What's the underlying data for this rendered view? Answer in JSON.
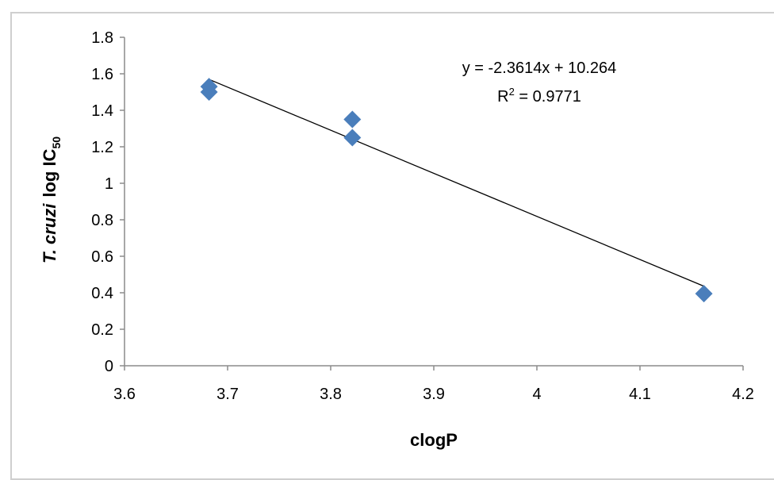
{
  "chart_data": {
    "type": "scatter",
    "x_label": "clogP",
    "y_label": {
      "italic_part": "T. cruzi",
      "regular_part": "log IC",
      "subscript": "50"
    },
    "xlim": [
      3.6,
      4.2
    ],
    "ylim": [
      0,
      1.8
    ],
    "x_ticks": [
      "3.6",
      "3.7",
      "3.8",
      "3.9",
      "4",
      "4.1",
      "4.2"
    ],
    "y_ticks": [
      "0",
      "0.2",
      "0.4",
      "0.6",
      "0.8",
      "1",
      "1.2",
      "1.4",
      "1.6",
      "1.8"
    ],
    "points": [
      {
        "x": 3.682,
        "y": 1.53
      },
      {
        "x": 3.682,
        "y": 1.5
      },
      {
        "x": 3.821,
        "y": 1.35
      },
      {
        "x": 3.821,
        "y": 1.25
      },
      {
        "x": 4.162,
        "y": 0.395
      }
    ],
    "trendline": {
      "slope": -2.3614,
      "intercept": 10.264,
      "x_range": [
        3.682,
        4.162
      ],
      "equation_text": "y = -2.3614x + 10.264",
      "r2_prefix": "R",
      "r2_sup": "2",
      "r2_suffix": " = 0.9771"
    },
    "marker_color": "#4a7ebb",
    "grid": false,
    "legend": "none"
  }
}
